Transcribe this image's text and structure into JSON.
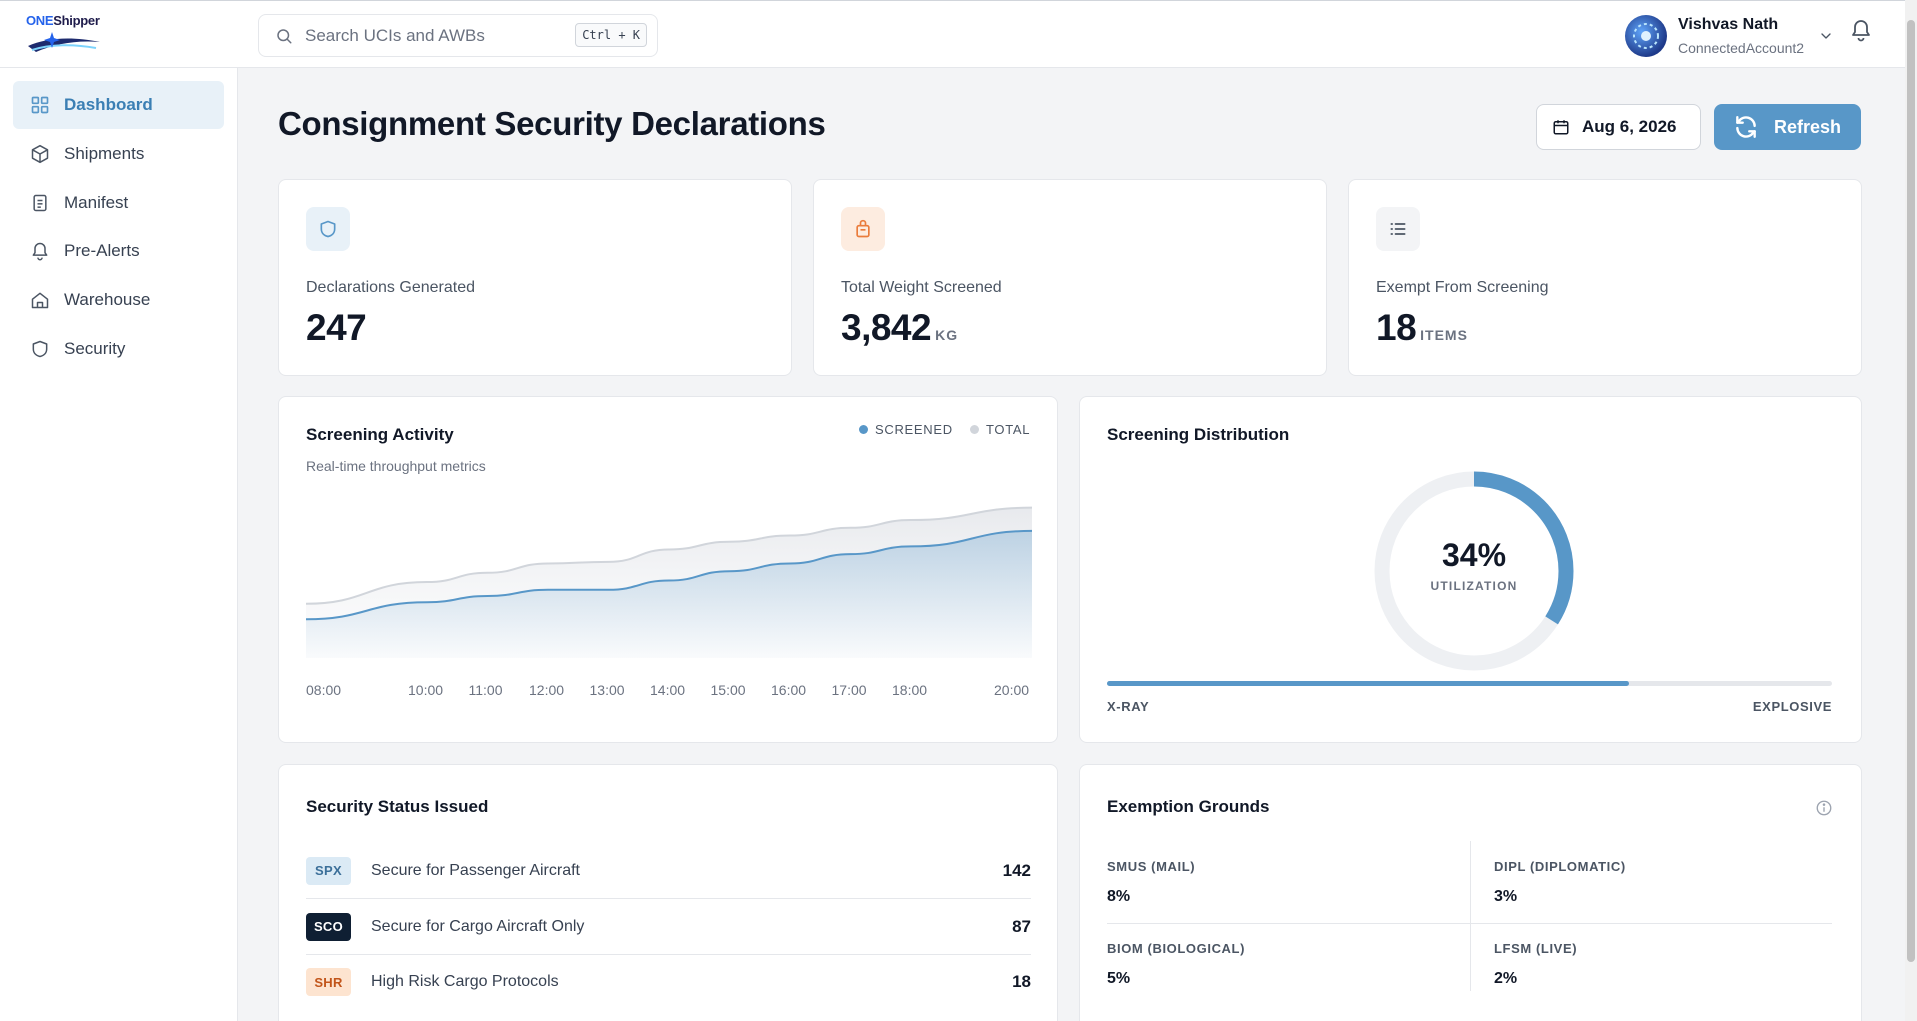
{
  "brand": {
    "name_part1": "ONE",
    "name_part2": "Shipper"
  },
  "search": {
    "placeholder": "Search UCIs and AWBs",
    "shortcut": "Ctrl + K"
  },
  "user": {
    "name": "Vishvas Nath",
    "account": "ConnectedAccount2"
  },
  "sidebar": {
    "items": [
      {
        "label": "Dashboard",
        "icon": "grid-icon",
        "active": true
      },
      {
        "label": "Shipments",
        "icon": "box-icon"
      },
      {
        "label": "Manifest",
        "icon": "document-icon"
      },
      {
        "label": "Pre-Alerts",
        "icon": "bell-icon"
      },
      {
        "label": "Warehouse",
        "icon": "home-icon"
      },
      {
        "label": "Security",
        "icon": "shield-icon"
      }
    ]
  },
  "header": {
    "title": "Consignment Security Declarations",
    "date": "Aug 6, 2026",
    "refresh_label": "Refresh"
  },
  "stats": [
    {
      "label": "Declarations Generated",
      "value": "247",
      "unit": "",
      "icon": "shield-icon",
      "color": "#5897c8"
    },
    {
      "label": "Total Weight Screened",
      "value": "3,842",
      "unit": "KG",
      "icon": "bag-icon",
      "color": "#ea7c3c"
    },
    {
      "label": "Exempt From Screening",
      "value": "18",
      "unit": "ITEMS",
      "icon": "list-icon",
      "color": "#4b5563"
    }
  ],
  "activity": {
    "title": "Screening Activity",
    "subtitle": "Real-time throughput metrics",
    "legend": [
      "SCREENED",
      "TOTAL"
    ],
    "colors": {
      "screened": "#5897c8",
      "total": "#d1d5db"
    }
  },
  "chart_data": {
    "type": "area",
    "x": [
      "08:00",
      "10:00",
      "11:00",
      "12:00",
      "13:00",
      "14:00",
      "15:00",
      "16:00",
      "17:00",
      "18:00",
      "20:00"
    ],
    "series": [
      {
        "name": "SCREENED",
        "values": [
          25,
          36,
          40,
          44,
          44,
          50,
          56,
          61,
          67,
          72,
          82
        ]
      },
      {
        "name": "TOTAL",
        "values": [
          35,
          49,
          55,
          61,
          62,
          70,
          75,
          79,
          84,
          89,
          97
        ]
      }
    ],
    "title": "Screening Activity",
    "subtitle": "Real-time throughput metrics",
    "ylim": [
      0,
      100
    ],
    "grid": false,
    "legend_position": "top-right"
  },
  "distribution": {
    "title": "Screening Distribution",
    "percent": 34,
    "percent_label": "34%",
    "center_label": "UTILIZATION",
    "xray_fraction": 0.72,
    "left_label": "X-RAY",
    "right_label": "EXPLOSIVE"
  },
  "status": {
    "title": "Security Status Issued",
    "rows": [
      {
        "code": "SPX",
        "label": "Secure for Passenger Aircraft",
        "count": "142",
        "bg": "#dbeaf5",
        "fg": "#3b6f99"
      },
      {
        "code": "SCO",
        "label": "Secure for Cargo Aircraft Only",
        "count": "87",
        "bg": "#0f1f33",
        "fg": "#ffffff"
      },
      {
        "code": "SHR",
        "label": "High Risk Cargo Protocols",
        "count": "18",
        "bg": "#fde4d0",
        "fg": "#c2551a"
      }
    ]
  },
  "exemption": {
    "title": "Exemption Grounds",
    "cells": [
      {
        "label": "SMUS (MAIL)",
        "value": "8%"
      },
      {
        "label": "DIPL (DIPLOMATIC)",
        "value": "3%"
      },
      {
        "label": "BIOM (BIOLOGICAL)",
        "value": "5%"
      },
      {
        "label": "LFSM (LIVE)",
        "value": "2%"
      }
    ]
  }
}
